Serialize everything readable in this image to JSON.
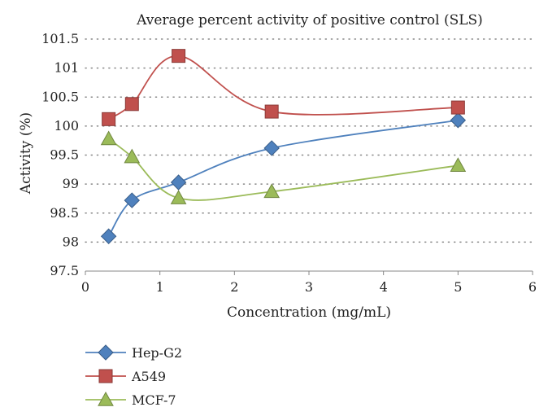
{
  "chart_data": {
    "type": "line",
    "title": "Average percent activity of positive control (SLS)",
    "xlabel": "Concentration (mg/mL)",
    "ylabel": "Activity (%)",
    "xlim": [
      0,
      6
    ],
    "ylim": [
      97.5,
      101.5
    ],
    "xticks": [
      "0",
      "1",
      "2",
      "3",
      "4",
      "5",
      "6"
    ],
    "yticks": [
      "97.5",
      "98",
      "98.5",
      "99",
      "99.5",
      "100",
      "100.5",
      "101",
      "101.5"
    ],
    "grid": "dotted horizontal",
    "legend_position": "bottom-left",
    "series": [
      {
        "name": "Hep-G2",
        "color": "#4f81bd",
        "marker": "diamond",
        "x": [
          0.3125,
          0.625,
          1.25,
          2.5,
          5
        ],
        "y": [
          98.1,
          98.72,
          99.03,
          99.62,
          100.1
        ]
      },
      {
        "name": "A549",
        "color": "#c0504d",
        "marker": "square",
        "x": [
          0.3125,
          0.625,
          1.25,
          2.5,
          5
        ],
        "y": [
          100.12,
          100.38,
          101.21,
          100.25,
          100.32
        ]
      },
      {
        "name": "MCF-7",
        "color": "#9bbb59",
        "marker": "triangle",
        "x": [
          0.3125,
          0.625,
          1.25,
          2.5,
          5
        ],
        "y": [
          99.78,
          99.47,
          98.76,
          98.87,
          99.32
        ]
      }
    ]
  }
}
